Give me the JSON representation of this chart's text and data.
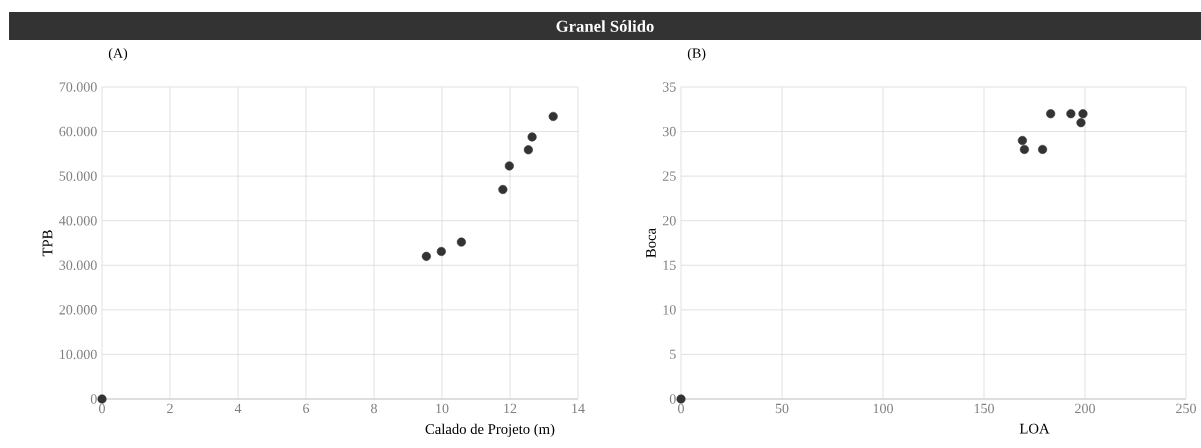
{
  "chart_data": [
    {
      "type": "scatter",
      "title": "Granel Sólido",
      "annotations": [
        "(A)"
      ],
      "xlabel": "Calado de Projeto (m)",
      "ylabel": "TPB",
      "x": [
        0,
        9.54,
        9.98,
        10.57,
        11.79,
        11.98,
        12.54,
        12.65,
        13.27
      ],
      "values": [
        0,
        32000,
        33100,
        35200,
        47000,
        52300,
        55900,
        58800,
        63400
      ],
      "color": "#333333",
      "marker": "circle",
      "grid": true,
      "xlim": [
        0,
        14
      ],
      "xticks": [
        0,
        2,
        4,
        6,
        8,
        10,
        12,
        14
      ],
      "ylim": [
        0,
        70000
      ],
      "yticks": [
        0,
        {
          "value": 10000,
          "label": "10.000"
        },
        {
          "value": 20000,
          "label": "20.000"
        },
        {
          "value": 30000,
          "label": "30.000"
        },
        {
          "value": 40000,
          "label": "40.000"
        },
        {
          "value": 50000,
          "label": "50.000"
        },
        {
          "value": 60000,
          "label": "60.000"
        },
        {
          "value": 70000,
          "label": "70.000"
        }
      ]
    },
    {
      "type": "scatter",
      "annotations": [
        "(B)"
      ],
      "xlabel": "LOA",
      "ylabel": "Boca",
      "x": [
        0,
        169,
        170,
        179,
        182,
        183,
        193,
        199,
        198
      ],
      "values": [
        0,
        29,
        28,
        28,
        null,
        32,
        32,
        32,
        31
      ],
      "color": "#333333",
      "marker": "circle",
      "grid": true,
      "xlim": [
        0,
        250
      ],
      "xticks": [
        0,
        50,
        100,
        150,
        200,
        250
      ],
      "ylim": [
        0,
        35
      ],
      "yticks": [
        0,
        5,
        10,
        15,
        20,
        25,
        30,
        35
      ]
    }
  ]
}
